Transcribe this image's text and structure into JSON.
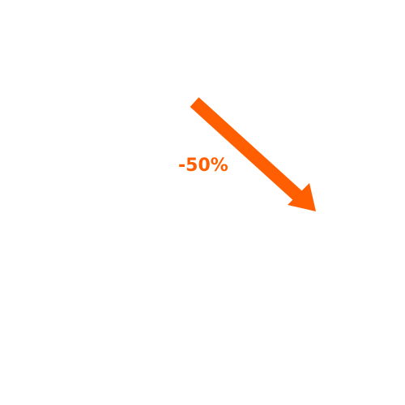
{
  "indicator": {
    "change_label": "-50%",
    "direction": "down-right",
    "icon": "trend-down-arrow-icon",
    "color": "#ff5f00"
  }
}
